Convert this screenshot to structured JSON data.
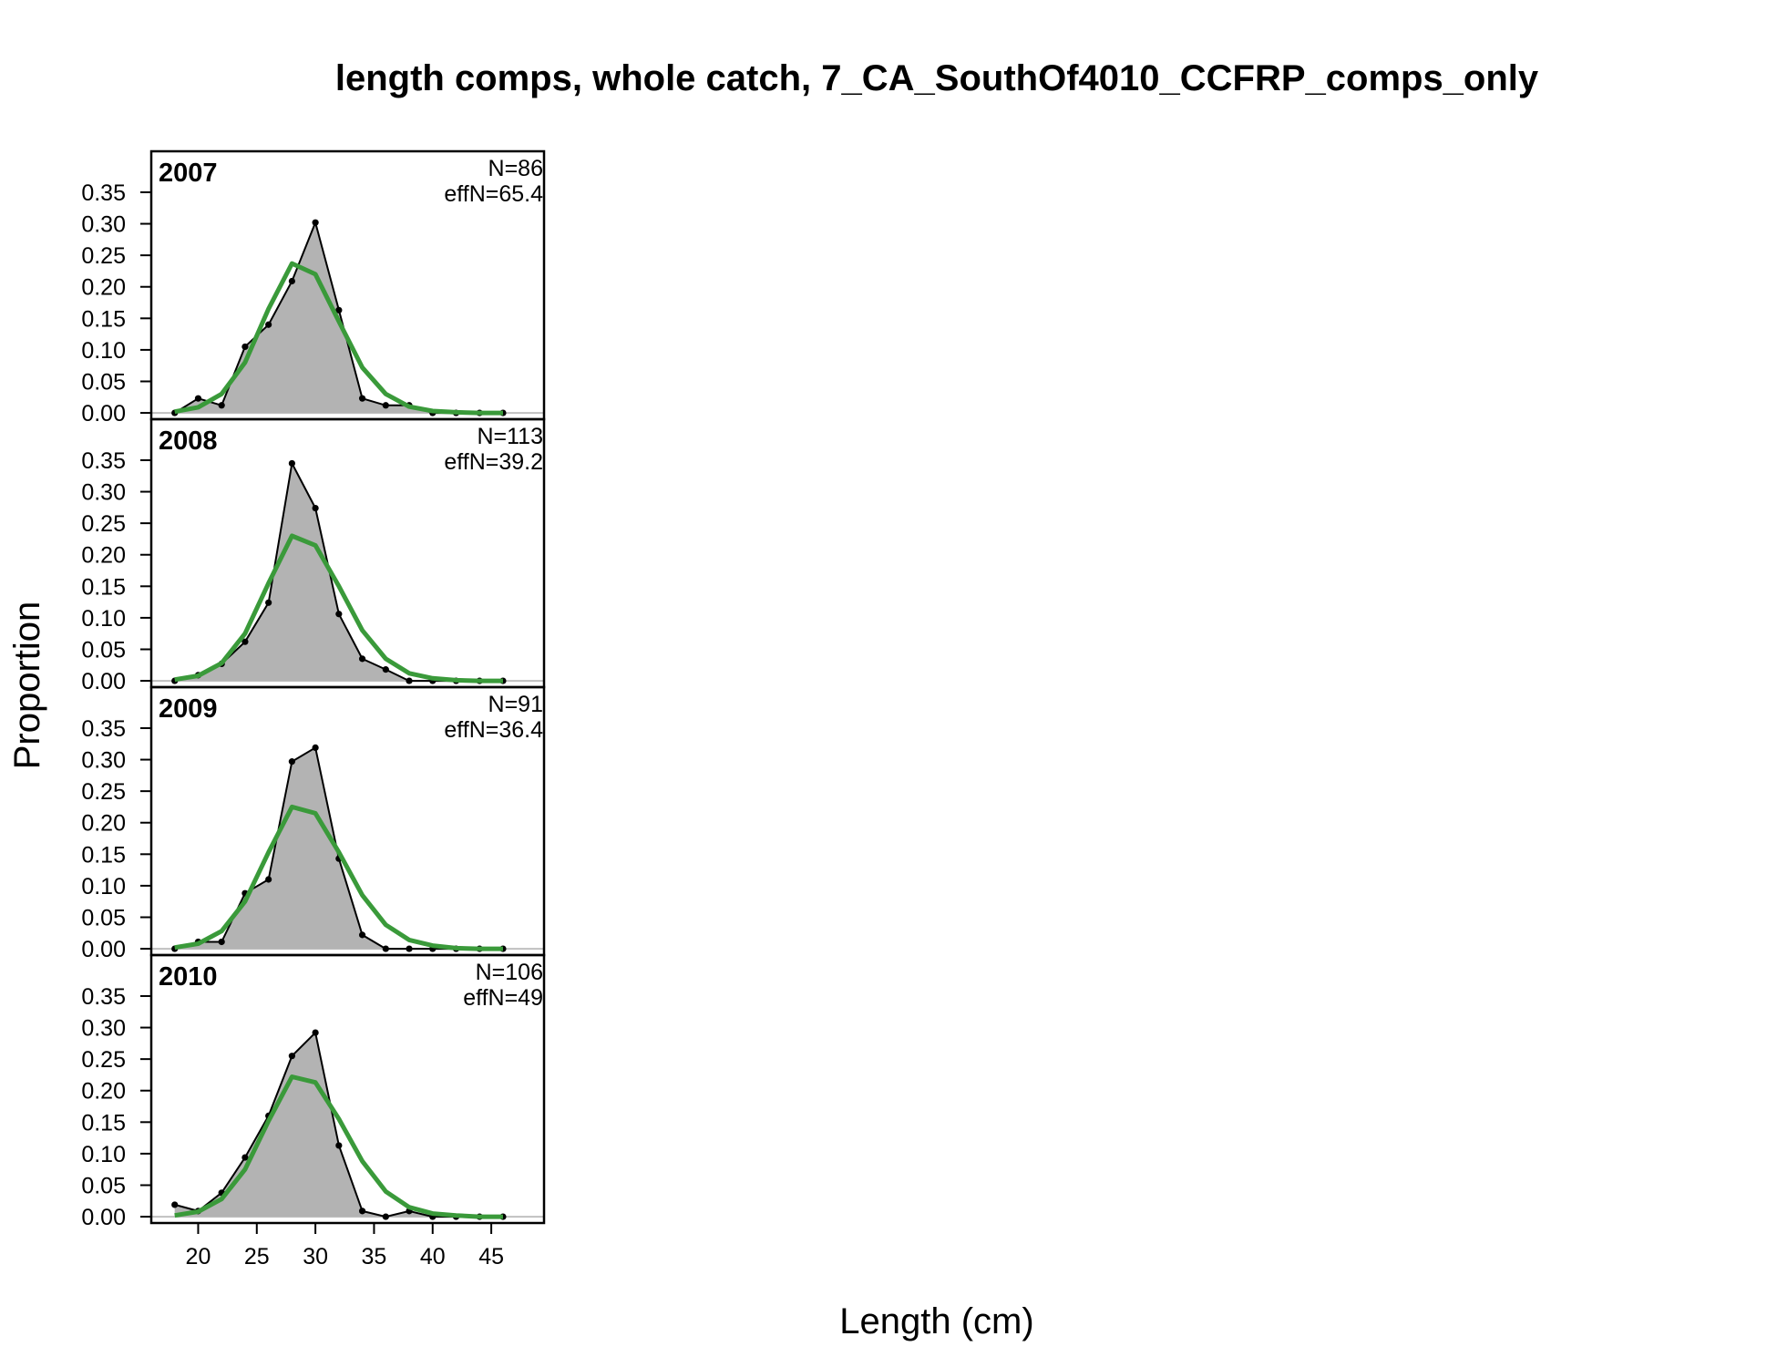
{
  "chart_data": {
    "type": "area",
    "title": "length comps, whole catch, 7_CA_SouthOf4010_CCFRP_comps_only",
    "xlabel": "Length (cm)",
    "ylabel": "Proportion",
    "xlim": [
      16,
      49.5
    ],
    "ylim": [
      -0.01,
      0.415
    ],
    "x_ticks": [
      20,
      25,
      30,
      35,
      40,
      45
    ],
    "y_ticks": [
      0.0,
      0.05,
      0.1,
      0.15,
      0.2,
      0.25,
      0.3,
      0.35
    ],
    "y_tick_labels": [
      "0.00",
      "0.05",
      "0.10",
      "0.15",
      "0.20",
      "0.25",
      "0.30",
      "0.35"
    ],
    "x": [
      18,
      20,
      22,
      24,
      26,
      28,
      30,
      32,
      34,
      36,
      38,
      40,
      42,
      44,
      46
    ],
    "colors": {
      "observed_fill": "#b3b3b3",
      "observed_line": "#000000",
      "expected_line": "#3a9a3a",
      "zero_line": "#c0c0c0"
    },
    "panels": [
      {
        "year": "2007",
        "n_label": "N=86",
        "effn_label": "effN=65.4",
        "observed": [
          0.0,
          0.023,
          0.012,
          0.105,
          0.14,
          0.209,
          0.302,
          0.163,
          0.023,
          0.012,
          0.012,
          0.0,
          0.0,
          0.0,
          0.0
        ],
        "expected": [
          0.002,
          0.009,
          0.03,
          0.08,
          0.165,
          0.237,
          0.22,
          0.145,
          0.072,
          0.03,
          0.01,
          0.003,
          0.001,
          0.0,
          0.0
        ]
      },
      {
        "year": "2008",
        "n_label": "N=113",
        "effn_label": "effN=39.2",
        "observed": [
          0.0,
          0.009,
          0.027,
          0.062,
          0.124,
          0.345,
          0.274,
          0.106,
          0.035,
          0.018,
          0.0,
          0.0,
          0.0,
          0.0,
          0.0
        ],
        "expected": [
          0.002,
          0.008,
          0.028,
          0.075,
          0.155,
          0.23,
          0.215,
          0.15,
          0.08,
          0.035,
          0.012,
          0.004,
          0.001,
          0.0,
          0.0
        ]
      },
      {
        "year": "2009",
        "n_label": "N=91",
        "effn_label": "effN=36.4",
        "observed": [
          0.0,
          0.011,
          0.011,
          0.088,
          0.11,
          0.297,
          0.319,
          0.143,
          0.022,
          0.0,
          0.0,
          0.0,
          0.0,
          0.0,
          0.0
        ],
        "expected": [
          0.002,
          0.008,
          0.028,
          0.075,
          0.153,
          0.225,
          0.215,
          0.153,
          0.085,
          0.038,
          0.014,
          0.005,
          0.001,
          0.0,
          0.0
        ]
      },
      {
        "year": "2010",
        "n_label": "N=106",
        "effn_label": "effN=49",
        "observed": [
          0.019,
          0.009,
          0.038,
          0.094,
          0.16,
          0.255,
          0.292,
          0.113,
          0.009,
          0.0,
          0.009,
          0.0,
          0.0,
          0.0,
          0.0
        ],
        "expected": [
          0.002,
          0.008,
          0.028,
          0.075,
          0.152,
          0.222,
          0.213,
          0.155,
          0.088,
          0.04,
          0.015,
          0.005,
          0.002,
          0.0,
          0.0
        ]
      }
    ]
  }
}
